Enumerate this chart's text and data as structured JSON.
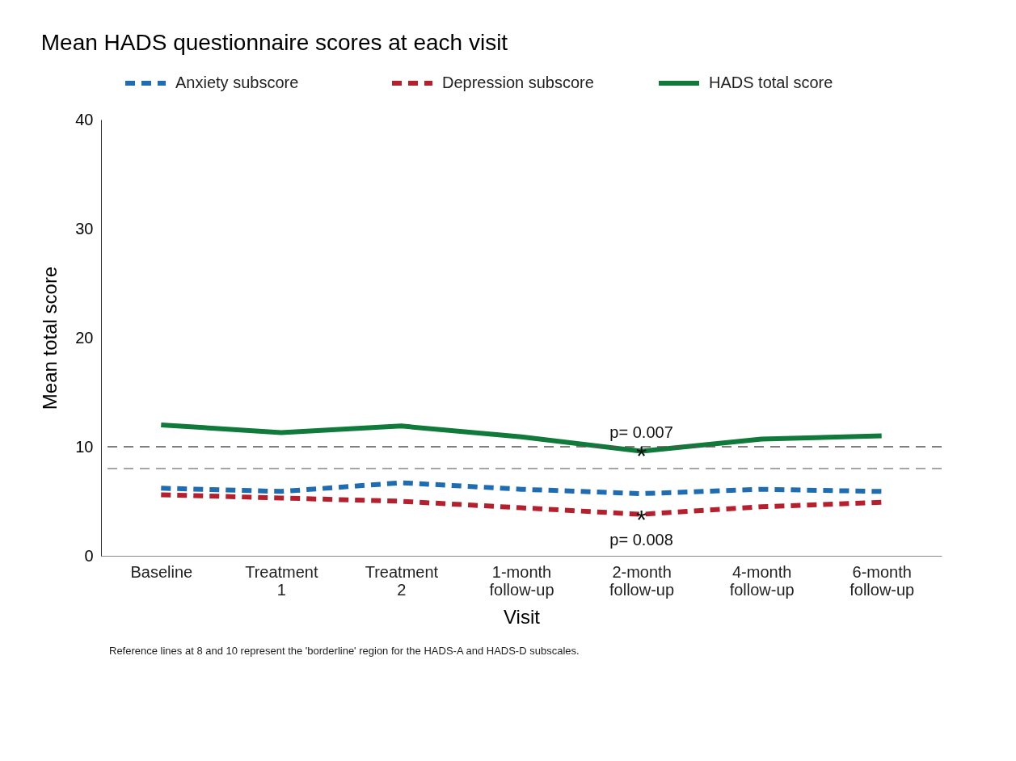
{
  "chart_data": {
    "type": "line",
    "title": "Mean HADS questionnaire scores at each visit",
    "xlabel": "Visit",
    "ylabel": "Mean total score",
    "categories": [
      "Baseline",
      "Treatment 1",
      "Treatment 2",
      "1-month follow-up",
      "2-month follow-up",
      "4-month follow-up",
      "6-month follow-up"
    ],
    "series": [
      {
        "name": "Anxiety subscore",
        "color": "#1f6cb0",
        "line_style": "dashed",
        "values": [
          6.2,
          5.9,
          6.7,
          6.1,
          5.7,
          6.1,
          5.9
        ]
      },
      {
        "name": "Depression subscore",
        "color": "#b5202e",
        "line_style": "dashed",
        "values": [
          5.6,
          5.3,
          5.0,
          4.4,
          3.8,
          4.5,
          4.9
        ]
      },
      {
        "name": "HADS total score",
        "color": "#0f7a3a",
        "line_style": "solid",
        "values": [
          12.0,
          11.3,
          11.9,
          10.9,
          9.6,
          10.7,
          11.0
        ]
      }
    ],
    "ylim": [
      0,
      40
    ],
    "yticks": [
      0,
      10,
      20,
      30,
      40
    ],
    "grid": false,
    "legend": "top",
    "marker": "none",
    "ref_lines": [
      {
        "axis": "y",
        "value": 10,
        "label": null,
        "color": "#555555",
        "line_style": "dashed"
      },
      {
        "axis": "y",
        "value": 8,
        "label": null,
        "color": "#888888",
        "line_style": "dashed"
      }
    ],
    "annotations": [
      {
        "text": "p= 0.007",
        "x": "2-month follow-up",
        "y": 9.6
      },
      {
        "text": "p= 0.008",
        "x": "2-month follow-up",
        "y": 3.8
      },
      {
        "text": "*",
        "x": "2-month follow-up",
        "y": 9.6
      },
      {
        "text": "*",
        "x": "2-month follow-up",
        "y": 3.8
      },
      "Reference lines at 8 and 10 represent the 'borderline' region for the HADS-A and HADS-D subscales."
    ]
  }
}
